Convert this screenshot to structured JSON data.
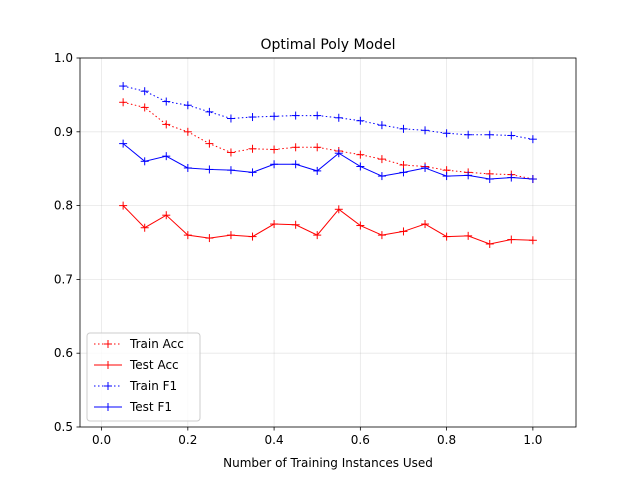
{
  "chart_data": {
    "type": "line",
    "title": "Optimal Poly Model",
    "xlabel": "Number of Training Instances Used",
    "ylabel": "",
    "xlim": [
      -0.05,
      1.1
    ],
    "ylim": [
      0.5,
      1.0
    ],
    "xticks": [
      0.0,
      0.2,
      0.4,
      0.6,
      0.8,
      1.0
    ],
    "xtick_labels": [
      "0.0",
      "0.2",
      "0.4",
      "0.6",
      "0.8",
      "1.0"
    ],
    "yticks": [
      0.5,
      0.6,
      0.7,
      0.8,
      0.9,
      1.0
    ],
    "ytick_labels": [
      "0.5",
      "0.6",
      "0.7",
      "0.8",
      "0.9",
      "1.0"
    ],
    "grid": true,
    "legend_position": "lower-left",
    "x": [
      0.05,
      0.1,
      0.15,
      0.2,
      0.25,
      0.3,
      0.35,
      0.4,
      0.45,
      0.5,
      0.55,
      0.6,
      0.65,
      0.7,
      0.75,
      0.8,
      0.85,
      0.9,
      0.95,
      1.0
    ],
    "series": [
      {
        "name": "Train Acc",
        "color": "#ff0000",
        "linestyle": "dotted",
        "marker": "plus",
        "values": [
          0.94,
          0.933,
          0.91,
          0.9,
          0.884,
          0.872,
          0.877,
          0.876,
          0.879,
          0.879,
          0.874,
          0.869,
          0.863,
          0.855,
          0.853,
          0.848,
          0.845,
          0.843,
          0.842,
          0.836
        ]
      },
      {
        "name": "Test Acc",
        "color": "#ff0000",
        "linestyle": "solid",
        "marker": "plus",
        "values": [
          0.8,
          0.77,
          0.787,
          0.76,
          0.756,
          0.76,
          0.758,
          0.775,
          0.774,
          0.76,
          0.795,
          0.773,
          0.76,
          0.765,
          0.775,
          0.758,
          0.759,
          0.748,
          0.754,
          0.753
        ]
      },
      {
        "name": "Train F1",
        "color": "#0000ff",
        "linestyle": "dotted",
        "marker": "plus",
        "values": [
          0.962,
          0.955,
          0.941,
          0.936,
          0.927,
          0.918,
          0.92,
          0.921,
          0.922,
          0.922,
          0.919,
          0.915,
          0.909,
          0.904,
          0.902,
          0.898,
          0.896,
          0.896,
          0.895,
          0.89
        ]
      },
      {
        "name": "Test F1",
        "color": "#0000ff",
        "linestyle": "solid",
        "marker": "plus",
        "values": [
          0.884,
          0.86,
          0.867,
          0.851,
          0.849,
          0.848,
          0.845,
          0.856,
          0.856,
          0.847,
          0.871,
          0.853,
          0.84,
          0.845,
          0.851,
          0.84,
          0.841,
          0.836,
          0.838,
          0.836
        ]
      }
    ]
  }
}
